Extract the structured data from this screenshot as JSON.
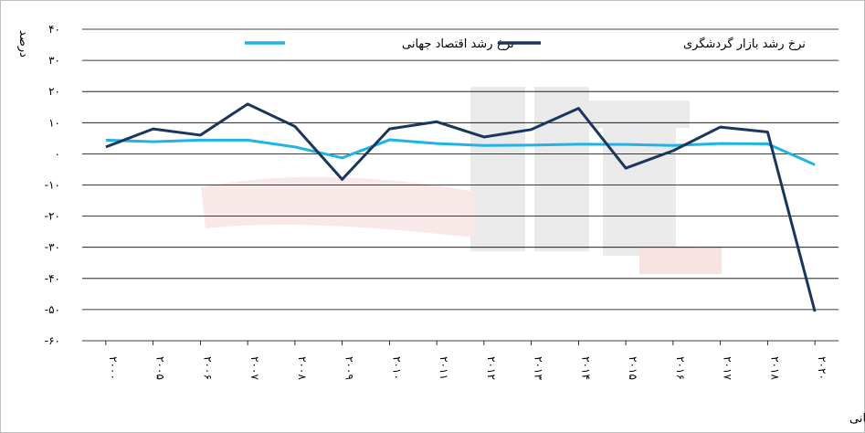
{
  "chart_data": {
    "type": "line",
    "ylabel": "درصد",
    "source": "منبع: بانک جهانی",
    "ylim": [
      -60,
      40
    ],
    "yticks": [
      40,
      30,
      20,
      10,
      0,
      -10,
      -20,
      -30,
      -40,
      -50,
      -60
    ],
    "ytick_labels": [
      "۴۰",
      "۳۰",
      "۲۰",
      "۱۰",
      "۰",
      "-۱۰",
      "-۲۰",
      "-۳۰",
      "-۴۰",
      "-۵۰",
      "-۶۰"
    ],
    "categories": [
      "۲۰۰۰",
      "۲۰۰۵",
      "۲۰۰۶",
      "۲۰۰۷",
      "۲۰۰۸",
      "۲۰۰۹",
      "۲۰۱۰",
      "۲۰۱۱",
      "۲۰۱۲",
      "۲۰۱۳",
      "۲۰۱۴",
      "۲۰۱۵",
      "۲۰۱۶",
      "۲۰۱۷",
      "۲۰۱۸",
      "۲۰۲۰"
    ],
    "grid": true,
    "legend_position": "top",
    "series": [
      {
        "name": "نرخ رشد اقتصاد جهانی",
        "color": "#1fb4e8",
        "values": [
          4.4,
          3.9,
          4.4,
          4.4,
          2.2,
          -1.3,
          4.5,
          3.3,
          2.7,
          2.8,
          3.1,
          3.0,
          2.7,
          3.3,
          3.2,
          -3.5
        ]
      },
      {
        "name": "نرخ رشد بازار گردشگری",
        "color": "#1b365d",
        "values": [
          2.2,
          8.0,
          6.0,
          16.0,
          8.8,
          -8.2,
          8.0,
          10.3,
          5.4,
          7.8,
          14.6,
          -4.6,
          1.0,
          8.6,
          7.0,
          -50.6
        ]
      }
    ]
  }
}
